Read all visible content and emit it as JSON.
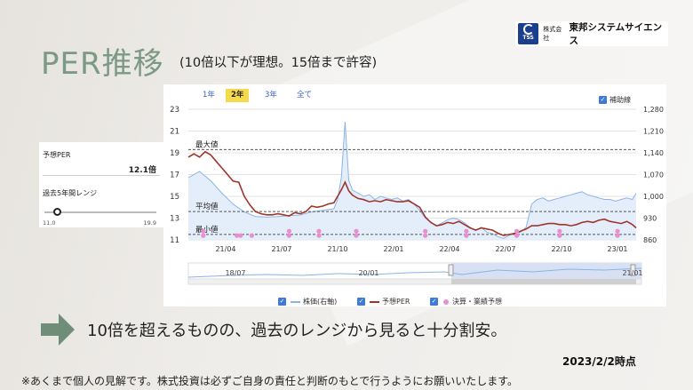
{
  "header": {
    "title": "PER推移",
    "subtitle": "(10倍以下が理想。15倍まで許容)"
  },
  "logo": {
    "mark_text": "TSS",
    "prefix": "株式会社",
    "company": "東邦システムサイエンス"
  },
  "side_panel": {
    "forecast_label": "予想PER",
    "forecast_value": "12.1倍",
    "range_label": "過去5年間レンジ",
    "range_min": "11.0",
    "range_max": "19.9",
    "current_fraction": 0.12
  },
  "chart": {
    "tabs": [
      {
        "label": "1年",
        "active": false
      },
      {
        "label": "2年",
        "active": true
      },
      {
        "label": "3年",
        "active": false
      },
      {
        "label": "全て",
        "active": false
      }
    ],
    "aux_lines_label": "補助線",
    "ref_labels": {
      "max": "最大値",
      "avg": "平均値",
      "min": "最小値"
    },
    "legend": {
      "price": "株価(右軸)",
      "per": "予想PER",
      "earnings": "決算・業績予想"
    },
    "navigator_labels": [
      "18/07",
      "20/01",
      "21/01"
    ],
    "colors": {
      "price": "#8cb3e6",
      "per": "#a0352c",
      "ref": "#555555",
      "dots": "#e78fcf"
    }
  },
  "chart_data": {
    "type": "line",
    "y_left_ticks": [
      "23",
      "21",
      "19",
      "17",
      "15",
      "13",
      "11"
    ],
    "y_right_ticks": [
      "1,280",
      "1,210",
      "1,140",
      "1,070",
      "1,000",
      "930",
      "860"
    ],
    "x_ticks": [
      "21/04",
      "21/07",
      "21/10",
      "22/01",
      "22/04",
      "22/07",
      "22/10",
      "23/01"
    ],
    "ylim_left": [
      11,
      23
    ],
    "ylim_right": [
      860,
      1280
    ],
    "reference_lines": {
      "max": 19.3,
      "avg": 13.6,
      "min": 11.5
    },
    "per_series": [
      [
        0,
        18.6
      ],
      [
        3,
        18.9
      ],
      [
        6,
        18.6
      ],
      [
        9,
        19.1
      ],
      [
        12,
        18.8
      ],
      [
        15,
        18.2
      ],
      [
        18,
        17.6
      ],
      [
        21,
        17.0
      ],
      [
        24,
        16.4
      ],
      [
        27,
        16.3
      ],
      [
        30,
        15.0
      ],
      [
        33,
        14.2
      ],
      [
        36,
        13.6
      ],
      [
        39,
        13.4
      ],
      [
        42,
        13.3
      ],
      [
        45,
        13.3
      ],
      [
        48,
        13.4
      ],
      [
        51,
        13.3
      ],
      [
        54,
        13.2
      ],
      [
        57,
        13.5
      ],
      [
        60,
        13.4
      ],
      [
        63,
        13.6
      ],
      [
        66,
        14.1
      ],
      [
        69,
        14.0
      ],
      [
        72,
        14.1
      ],
      [
        75,
        14.3
      ],
      [
        78,
        14.4
      ],
      [
        80,
        15.0
      ],
      [
        82,
        15.6
      ],
      [
        84,
        16.3
      ],
      [
        86,
        15.5
      ],
      [
        88,
        15.1
      ],
      [
        91,
        14.8
      ],
      [
        94,
        14.7
      ],
      [
        97,
        14.5
      ],
      [
        100,
        14.6
      ],
      [
        103,
        14.5
      ],
      [
        106,
        14.7
      ],
      [
        109,
        14.6
      ],
      [
        112,
        14.5
      ],
      [
        115,
        14.5
      ],
      [
        118,
        14.6
      ],
      [
        121,
        14.3
      ],
      [
        124,
        14.0
      ],
      [
        127,
        13.1
      ],
      [
        130,
        12.6
      ],
      [
        133,
        12.3
      ],
      [
        136,
        12.4
      ],
      [
        139,
        12.6
      ],
      [
        142,
        12.5
      ],
      [
        145,
        12.7
      ],
      [
        148,
        12.4
      ],
      [
        151,
        12.1
      ],
      [
        154,
        11.9
      ],
      [
        157,
        12.1
      ],
      [
        160,
        12.0
      ],
      [
        163,
        11.9
      ],
      [
        166,
        11.6
      ],
      [
        169,
        11.4
      ],
      [
        172,
        11.5
      ],
      [
        175,
        11.6
      ],
      [
        178,
        11.8
      ],
      [
        181,
        12.0
      ],
      [
        184,
        12.3
      ],
      [
        187,
        12.3
      ],
      [
        190,
        12.4
      ],
      [
        193,
        12.5
      ],
      [
        196,
        12.5
      ],
      [
        199,
        12.4
      ],
      [
        202,
        12.4
      ],
      [
        205,
        12.3
      ],
      [
        208,
        12.4
      ],
      [
        211,
        12.6
      ],
      [
        214,
        12.7
      ],
      [
        217,
        12.6
      ],
      [
        220,
        12.8
      ],
      [
        223,
        12.9
      ],
      [
        226,
        12.7
      ],
      [
        229,
        12.6
      ],
      [
        232,
        12.5
      ],
      [
        235,
        12.7
      ],
      [
        238,
        12.4
      ],
      [
        240,
        12.1
      ]
    ],
    "price_series": [
      [
        0,
        1060
      ],
      [
        6,
        1080
      ],
      [
        12,
        1050
      ],
      [
        18,
        1010
      ],
      [
        24,
        975
      ],
      [
        30,
        950
      ],
      [
        36,
        935
      ],
      [
        42,
        933
      ],
      [
        48,
        935
      ],
      [
        54,
        938
      ],
      [
        60,
        940
      ],
      [
        66,
        950
      ],
      [
        72,
        955
      ],
      [
        78,
        960
      ],
      [
        80,
        990
      ],
      [
        82,
        1060
      ],
      [
        84,
        1240
      ],
      [
        86,
        1050
      ],
      [
        88,
        1020
      ],
      [
        91,
        1010
      ],
      [
        94,
        1000
      ],
      [
        97,
        1005
      ],
      [
        100,
        990
      ],
      [
        103,
        1000
      ],
      [
        106,
        995
      ],
      [
        109,
        990
      ],
      [
        112,
        995
      ],
      [
        115,
        985
      ],
      [
        118,
        990
      ],
      [
        121,
        975
      ],
      [
        124,
        955
      ],
      [
        127,
        930
      ],
      [
        130,
        915
      ],
      [
        133,
        905
      ],
      [
        136,
        915
      ],
      [
        139,
        925
      ],
      [
        142,
        930
      ],
      [
        145,
        925
      ],
      [
        148,
        915
      ],
      [
        151,
        900
      ],
      [
        154,
        890
      ],
      [
        157,
        900
      ],
      [
        160,
        885
      ],
      [
        163,
        880
      ],
      [
        166,
        870
      ],
      [
        169,
        865
      ],
      [
        172,
        875
      ],
      [
        175,
        880
      ],
      [
        178,
        885
      ],
      [
        181,
        900
      ],
      [
        184,
        975
      ],
      [
        187,
        990
      ],
      [
        190,
        995
      ],
      [
        193,
        985
      ],
      [
        196,
        990
      ],
      [
        199,
        995
      ],
      [
        202,
        1000
      ],
      [
        205,
        1005
      ],
      [
        208,
        1010
      ],
      [
        211,
        1015
      ],
      [
        214,
        1005
      ],
      [
        217,
        1000
      ],
      [
        220,
        995
      ],
      [
        223,
        990
      ],
      [
        226,
        990
      ],
      [
        229,
        985
      ],
      [
        232,
        990
      ],
      [
        235,
        995
      ],
      [
        238,
        990
      ],
      [
        240,
        1010
      ]
    ],
    "earnings_points": [
      [
        8,
        11.8
      ],
      [
        8,
        11.4
      ],
      [
        26,
        11.4
      ],
      [
        28,
        11.4
      ],
      [
        34,
        11.4
      ],
      [
        54,
        11.8
      ],
      [
        54,
        11.4
      ],
      [
        70,
        11.8
      ],
      [
        70,
        11.4
      ],
      [
        90,
        11.8
      ],
      [
        90,
        11.4
      ],
      [
        127,
        11.8
      ],
      [
        127,
        11.4
      ],
      [
        149,
        11.8
      ],
      [
        149,
        11.4
      ],
      [
        176,
        11.8
      ],
      [
        176,
        11.4
      ],
      [
        199,
        11.8
      ],
      [
        199,
        11.4
      ],
      [
        230,
        11.8
      ],
      [
        230,
        11.4
      ]
    ]
  },
  "comment": "10倍を超えるものの、過去のレンジから見ると十分割安。",
  "as_of": "2023/2/2時点",
  "disclaimer": "※あくまで個人の見解です。株式投資は必ずご自身の責任と判断のもとで行うようにお願いいたします。"
}
